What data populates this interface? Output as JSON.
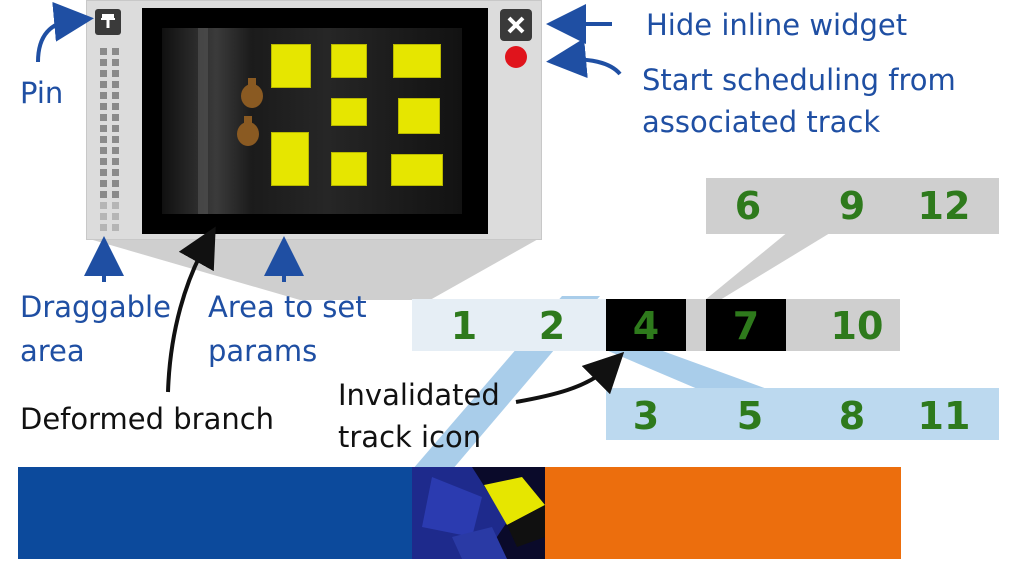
{
  "colors": {
    "label_blue": "#1f4fa3",
    "number_green": "#2e7a1c",
    "track_blue": "#0c4a9c",
    "track_orange": "#ec6e0d",
    "widget_panel": "#dcdcdc",
    "light_blue": "#bcd9ef",
    "record_red": "#e0141c"
  },
  "labels": {
    "pin": "Pin",
    "hide_widget": "Hide inline widget",
    "start_sched_line1": "Start scheduling from",
    "start_sched_line2": "associated track",
    "draggable_line1": "Draggable",
    "draggable_line2": "area",
    "params_line1": "Area to set",
    "params_line2": "params",
    "deformed_branch": "Deformed branch",
    "invalidated_line1": "Invalidated",
    "invalidated_line2": "track icon"
  },
  "widget": {
    "pin_icon": "pin-icon",
    "close_icon": "close-icon",
    "record_icon": "record-dot-icon"
  },
  "tracks": {
    "top_row": [
      "6",
      "9",
      "12"
    ],
    "middle_row": [
      "1",
      "2",
      "4",
      "7",
      "10"
    ],
    "bottom_row": [
      "3",
      "5",
      "8",
      "11"
    ]
  }
}
